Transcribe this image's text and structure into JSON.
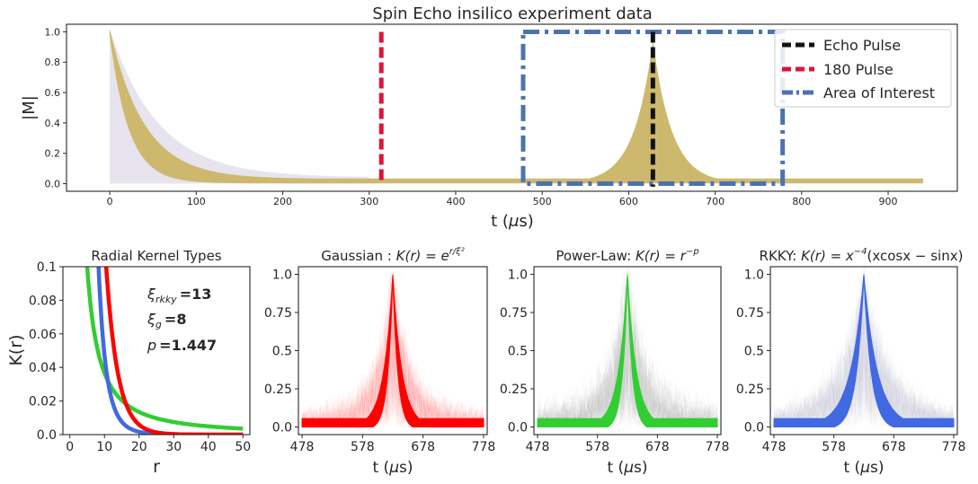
{
  "chart_data": [
    {
      "type": "line",
      "title": "Spin Echo insilico experiment data",
      "xlabel": "t ($\\mu$s)",
      "ylabel": "|M|",
      "xlim": [
        -50,
        980
      ],
      "ylim": [
        -0.05,
        1.05
      ],
      "xticks": [
        0,
        100,
        200,
        300,
        400,
        500,
        600,
        700,
        800,
        900
      ],
      "yticks": [
        0.0,
        0.2,
        0.4,
        0.6,
        0.8,
        1.0
      ],
      "xtick_labels": [
        "0",
        "100",
        "200",
        "300",
        "400",
        "500",
        "600",
        "700",
        "800",
        "900"
      ],
      "ytick_labels": [
        "0.0",
        "0.2",
        "0.4",
        "0.6",
        "0.8",
        "1.0"
      ],
      "signal": {
        "start": 0,
        "end": 940,
        "baseline": 0.02,
        "decay_tau": 40,
        "echo_peak": 0.93,
        "echo_time": 628
      },
      "lines": {
        "echo_pulse_x": 628,
        "pulse_180_x": 314
      },
      "area_of_interest": {
        "x0": 478,
        "x1": 778,
        "y0": 0.0,
        "y1": 1.0
      },
      "legend": {
        "placement": "upper right",
        "entries": [
          {
            "label": "Echo Pulse",
            "color": "#111111"
          },
          {
            "label": "180 Pulse",
            "color": "#dc143c"
          },
          {
            "label": "Area of Interest",
            "color": "#4c72b0"
          }
        ]
      },
      "colors": {
        "signal": "#cdb86e",
        "echo": "#111111",
        "pulse180": "#dc143c",
        "area": "#4c72b0"
      }
    },
    {
      "type": "line",
      "title": "Radial Kernel Types",
      "xlabel": "r",
      "ylabel": "K(r)",
      "xlim": [
        -2,
        52
      ],
      "ylim": [
        0.0,
        0.1
      ],
      "xticks": [
        0,
        10,
        20,
        30,
        40,
        50
      ],
      "yticks": [
        0.0,
        0.02,
        0.04,
        0.06,
        0.08,
        0.1
      ],
      "xtick_labels": [
        "0",
        "10",
        "20",
        "30",
        "40",
        "50"
      ],
      "ytick_labels": [
        "0.0",
        "0.02",
        "0.04",
        "0.06",
        "0.08",
        "0.1"
      ],
      "params": {
        "xi_rkky": 13,
        "xi_g": 8,
        "p": 1.447
      },
      "annotations": [
        {
          "sym": "ξ",
          "sub": "rkky",
          "value": "=13"
        },
        {
          "sym": "ξ",
          "sub": "g",
          "value": "=8"
        },
        {
          "sym": "p",
          "sub": "",
          "value": "=1.447"
        }
      ],
      "series_colors": {
        "power": "#32cd32",
        "rkky": "#4169e1",
        "gauss": "#ff0000"
      }
    },
    {
      "type": "line",
      "title_prefix": "Gaussian : ",
      "title_math": "K(r) = e",
      "title_sup": "r/ξ²",
      "xlabel": "t ($\\mu$s)",
      "xlim": [
        472,
        784
      ],
      "ylim": [
        -0.05,
        1.05
      ],
      "xticks": [
        478,
        578,
        678,
        778
      ],
      "yticks": [
        0.0,
        0.25,
        0.5,
        0.75,
        1.0
      ],
      "xtick_labels": [
        "478",
        "578",
        "678",
        "778"
      ],
      "ytick_labels": [
        "0.0",
        "0.25",
        "0.5",
        "0.75",
        "1.0"
      ],
      "peak_x": 628,
      "baseline": 0.03,
      "tau": 12,
      "colors": {
        "main": "#ff0000",
        "haze": "#ff9a9a"
      }
    },
    {
      "type": "line",
      "title_prefix": "Power-Law: ",
      "title_math": "K(r) = r",
      "title_sup": "−p",
      "xlabel": "t ($\\mu$s)",
      "xlim": [
        472,
        784
      ],
      "ylim": [
        -0.05,
        1.05
      ],
      "xticks": [
        478,
        578,
        678,
        778
      ],
      "yticks": [
        0.0,
        0.25,
        0.5,
        0.75,
        1.0
      ],
      "xtick_labels": [
        "478",
        "578",
        "678",
        "778"
      ],
      "ytick_labels": [
        "0.0",
        "0.25",
        "0.5",
        "0.75",
        "1.0"
      ],
      "peak_x": 628,
      "baseline": 0.03,
      "tau": 12,
      "colors": {
        "main": "#32cd32",
        "haze": "#b8b8b8"
      }
    },
    {
      "type": "line",
      "title_prefix": "RKKY: ",
      "title_math": "K(r) = x",
      "title_sup": "−4",
      "title_suffix": "(xcosx − sinx)",
      "xlabel": "t ($\\mu$s)",
      "xlim": [
        472,
        784
      ],
      "ylim": [
        -0.05,
        1.05
      ],
      "xticks": [
        478,
        578,
        678,
        778
      ],
      "yticks": [
        0.0,
        0.25,
        0.5,
        0.75,
        1.0
      ],
      "xtick_labels": [
        "478",
        "578",
        "678",
        "778"
      ],
      "ytick_labels": [
        "0.0",
        "0.25",
        "0.5",
        "0.75",
        "1.0"
      ],
      "peak_x": 628,
      "baseline": 0.03,
      "tau": 18,
      "colors": {
        "main": "#4169e1",
        "haze": "#c8c8d8"
      }
    }
  ]
}
